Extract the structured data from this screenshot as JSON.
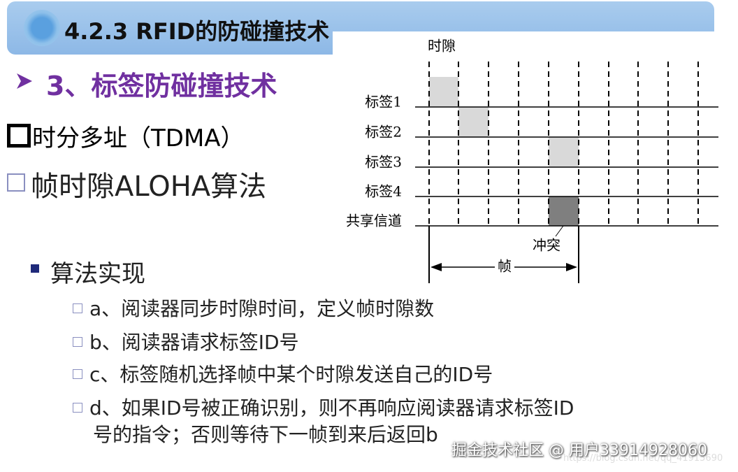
{
  "header": {
    "title": "4.2.3 RFID的防碰撞技术"
  },
  "section_title": "3、标签防碰撞技术",
  "methods": [
    "时分多址（TDMA）",
    "帧时隙ALOHA算法"
  ],
  "subsection": "算法实现",
  "items": [
    {
      "lines": [
        "a、阅读器同步时隙时间，定义帧时隙数"
      ]
    },
    {
      "lines": [
        "b、阅读器请求标签ID号"
      ]
    },
    {
      "lines": [
        "c、标签随机选择帧中某个时隙发送自己的ID号"
      ]
    },
    {
      "lines": [
        "d、如果ID号被正确识别，则不再响应阅读器请求标签ID",
        "号的指令；否则等待下一帧到来后返回b"
      ]
    }
  ],
  "diagram": {
    "slot_label": "时隙",
    "rows": [
      "标签1",
      "标签2",
      "标签3",
      "标签4",
      "共享信道"
    ],
    "collision_label": "冲突",
    "frame_label": "帧"
  },
  "watermark": {
    "text": "掘金技术社区 @ 用户33914928060",
    "url": "https://blog.csdn.net/qq_41915690"
  }
}
